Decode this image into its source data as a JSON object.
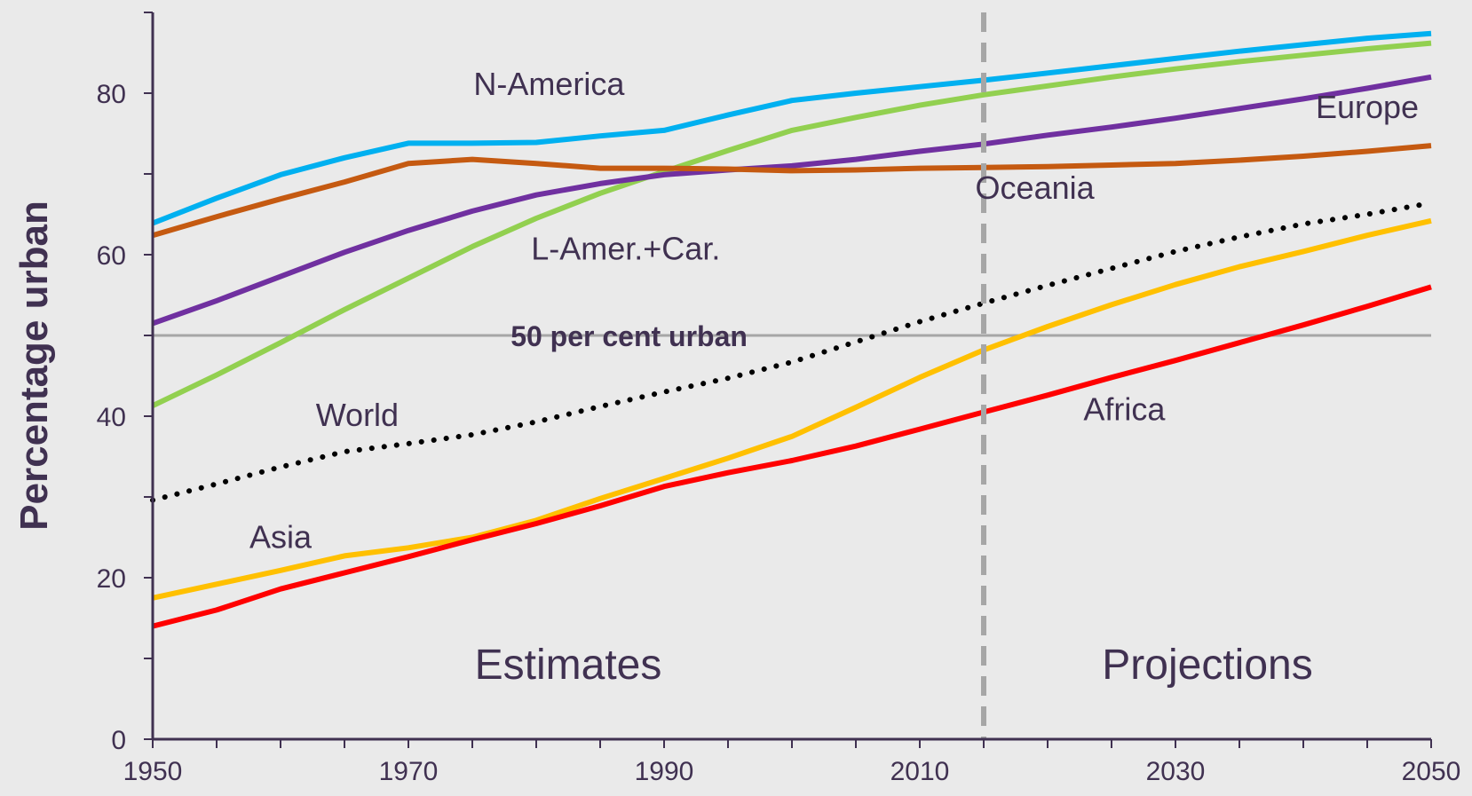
{
  "chart_data": {
    "type": "line",
    "ylabel": "Percentage urban",
    "xlim": [
      1950,
      2050
    ],
    "ylim": [
      0,
      90
    ],
    "x_ticks": [
      1950,
      1970,
      1990,
      2010,
      2030,
      2050
    ],
    "y_ticks": [
      0,
      20,
      40,
      60,
      80
    ],
    "x": [
      1950,
      1955,
      1960,
      1965,
      1970,
      1975,
      1980,
      1985,
      1990,
      1995,
      2000,
      2005,
      2010,
      2015,
      2020,
      2025,
      2030,
      2035,
      2040,
      2045,
      2050
    ],
    "series": [
      {
        "name": "N-America",
        "color": "#00B0F0",
        "dash": "solid",
        "values": [
          63.9,
          67.0,
          69.9,
          72.0,
          73.8,
          73.8,
          73.9,
          74.7,
          75.4,
          77.3,
          79.1,
          80.0,
          80.8,
          81.6,
          82.5,
          83.4,
          84.3,
          85.2,
          86.0,
          86.8,
          87.4
        ]
      },
      {
        "name": "L-Amer.+Car.",
        "color": "#92D050",
        "dash": "solid",
        "values": [
          41.3,
          45.1,
          49.1,
          53.2,
          57.1,
          61.0,
          64.5,
          67.6,
          70.3,
          72.9,
          75.4,
          77.0,
          78.5,
          79.8,
          80.9,
          82.0,
          83.0,
          83.9,
          84.7,
          85.5,
          86.2
        ]
      },
      {
        "name": "Europe",
        "color": "#7030A0",
        "dash": "solid",
        "values": [
          51.5,
          54.3,
          57.3,
          60.3,
          63.0,
          65.4,
          67.4,
          68.8,
          69.9,
          70.5,
          71.0,
          71.8,
          72.8,
          73.7,
          74.8,
          75.8,
          76.9,
          78.1,
          79.3,
          80.6,
          82.0
        ]
      },
      {
        "name": "Oceania",
        "color": "#C55A11",
        "dash": "solid",
        "values": [
          62.4,
          64.7,
          66.9,
          69.0,
          71.3,
          71.8,
          71.3,
          70.7,
          70.7,
          70.6,
          70.4,
          70.5,
          70.7,
          70.8,
          70.9,
          71.1,
          71.3,
          71.7,
          72.2,
          72.8,
          73.5
        ]
      },
      {
        "name": "World",
        "color": "#000000",
        "dash": "dotted",
        "values": [
          29.6,
          31.6,
          33.7,
          35.6,
          36.6,
          37.7,
          39.3,
          41.2,
          43.0,
          44.7,
          46.7,
          49.2,
          51.7,
          54.0,
          56.2,
          58.3,
          60.4,
          62.2,
          63.8,
          65.0,
          66.4
        ]
      },
      {
        "name": "Asia",
        "color": "#FFC000",
        "dash": "solid",
        "values": [
          17.5,
          19.2,
          20.9,
          22.7,
          23.7,
          25.0,
          27.1,
          29.8,
          32.3,
          34.8,
          37.5,
          41.1,
          44.8,
          48.2,
          51.1,
          53.8,
          56.3,
          58.5,
          60.4,
          62.4,
          64.2
        ]
      },
      {
        "name": "Africa",
        "color": "#FF0000",
        "dash": "solid",
        "values": [
          14.0,
          16.0,
          18.6,
          20.6,
          22.6,
          24.7,
          26.7,
          28.9,
          31.3,
          33.0,
          34.5,
          36.3,
          38.4,
          40.5,
          42.6,
          44.8,
          46.9,
          49.1,
          51.3,
          53.6,
          56.0
        ]
      }
    ],
    "reference_line": {
      "y": 50,
      "label": "50 per cent urban",
      "color": "#A6A6A6"
    },
    "divider": {
      "x": 2015,
      "color": "#A6A6A6"
    },
    "regions": [
      {
        "label": "Estimates",
        "x_from": 1950,
        "x_to": 2015
      },
      {
        "label": "Projections",
        "x_from": 2015,
        "x_to": 2050
      }
    ],
    "series_labels": [
      {
        "text": "N-America",
        "x": 1981,
        "y": 79.8
      },
      {
        "text": "L-Amer.+Car.",
        "x": 1987,
        "y": 59.4
      },
      {
        "text": "Europe",
        "x": 2045,
        "y": 76.9
      },
      {
        "text": "Oceania",
        "x": 2019,
        "y": 66.9
      },
      {
        "text": "World",
        "x": 1966,
        "y": 38.8
      },
      {
        "text": "Asia",
        "x": 1960,
        "y": 23.7
      },
      {
        "text": "Africa",
        "x": 2026,
        "y": 39.5
      }
    ],
    "background_color": "#EAEAEA",
    "axis_color": "#403151",
    "text_color": "#403151",
    "grid": false,
    "legend": "inline labels"
  }
}
